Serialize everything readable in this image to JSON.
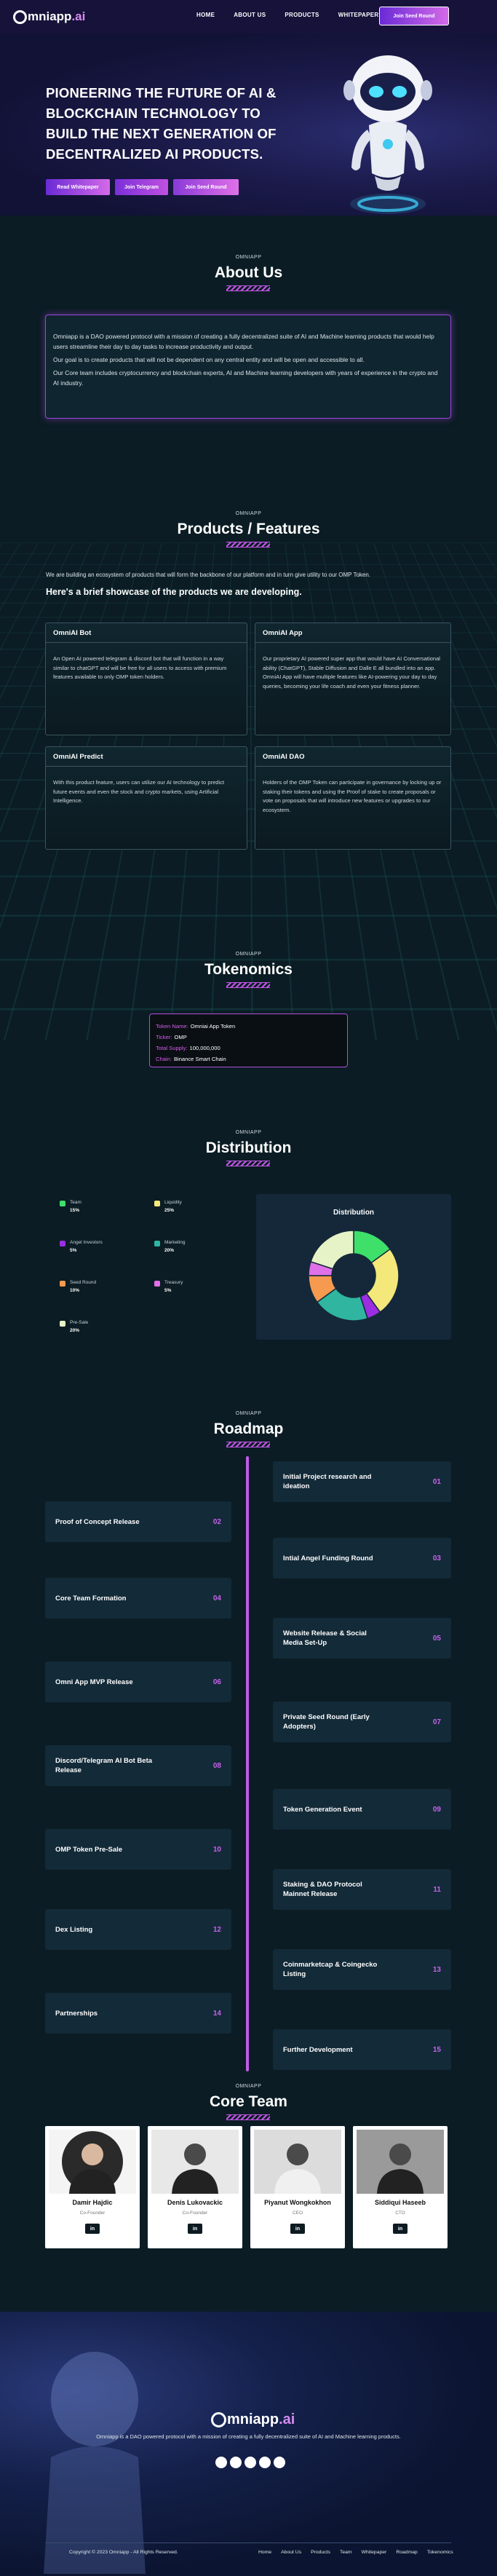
{
  "nav": {
    "logo": "mniapp",
    "logo_suffix": ".ai",
    "links": [
      "HOME",
      "ABOUT US",
      "PRODUCTS",
      "WHITEPAPER"
    ],
    "cta": "Join Seed Round"
  },
  "hero": {
    "title": "PIONEERING THE FUTURE OF AI & BLOCKCHAIN TECHNOLOGY TO BUILD THE NEXT GENERATION OF DECENTRALIZED AI PRODUCTS.",
    "buttons": [
      "Read Whitepaper",
      "Join Telegram",
      "Join Seed Round"
    ]
  },
  "about": {
    "eyebrow": "OMNIAPP",
    "title": "About Us",
    "paragraphs": [
      "Omniapp is a DAO powered protocol with a mission of creating a fully decentralized suite of AI and Machine learning products that would help users streamline their day to day tasks to increase productivity and output.",
      "Our goal is to create products that will not be dependent on any central entity and will be open and accessible to all.",
      "Our Core team includes cryptocurrency and blockchain experts, AI and Machine learning developers with years of experience in the crypto and AI industry."
    ]
  },
  "products": {
    "eyebrow": "OMNIAPP",
    "title": "Products / Features",
    "intro": "We are building an ecosystem of products that will form the backbone of our platform and in turn give utility to our OMP Token.",
    "subtitle": "Here's a brief showcase of the products we are developing.",
    "cards": [
      {
        "title": "OmniAI Bot",
        "text": "An Open AI powered telegram & discord bot that will function in a way similar to chatGPT and will be free for all users to access with premium features available to only OMP token holders."
      },
      {
        "title": "OmniAI App",
        "text": "Our proprietary AI powered super app that would have AI Conversational ability (ChatGPT), Stable Diffusion and Dalle E all bundled into an app. OmniAI App will have multiple features like AI-powering your day to day queries, becoming your life coach and even your fitness planner."
      },
      {
        "title": "OmniAI Predict",
        "text": "With this product feature, users can utilize our AI technology to predict future events and even the stock and crypto markets, using Artificial Intelligence."
      },
      {
        "title": "OmniAI DAO",
        "text": "Holders of the OMP Token can participate in governance by locking up or staking their tokens and using the Proof of stake to create proposals or vote on proposals that will introduce new features or upgrades to our ecosystem."
      }
    ]
  },
  "tokenomics": {
    "eyebrow": "OMNIAPP",
    "title": "Tokenomics",
    "items": [
      {
        "label": "Token Name:",
        "value": "Omniai App Token"
      },
      {
        "label": "Ticker:",
        "value": "OMP"
      },
      {
        "label": "Total Supply:",
        "value": "100,000,000"
      },
      {
        "label": "Chain:",
        "value": "Binance Smart Chain"
      }
    ]
  },
  "distribution": {
    "eyebrow": "OMNIAPP",
    "title": "Distribution"
  },
  "chart_data": {
    "type": "pie",
    "donut": true,
    "title": "Distribution",
    "categories": [
      "Team",
      "Liquidity",
      "Angel Investors",
      "Marketing",
      "Seed Round",
      "Treasury",
      "Pre-Sale"
    ],
    "values": [
      15,
      25,
      5,
      20,
      10,
      5,
      20
    ],
    "value_labels": [
      "15%",
      "25%",
      "5%",
      "20%",
      "10%",
      "5%",
      "20%"
    ],
    "colors": [
      "#3ee06a",
      "#f4e87a",
      "#9a2ee0",
      "#2fb5a0",
      "#f59a4e",
      "#e070e8",
      "#e6f3c6"
    ]
  },
  "roadmap": {
    "eyebrow": "OMNIAPP",
    "title": "Roadmap",
    "items": [
      {
        "title": "Initial Project research and ideation",
        "number": "01"
      },
      {
        "title": "Proof of Concept Release",
        "number": "02"
      },
      {
        "title": "Intial Angel Funding Round",
        "number": "03"
      },
      {
        "title": "Core Team Formation",
        "number": "04"
      },
      {
        "title": "Website Release & Social Media Set-Up",
        "number": "05"
      },
      {
        "title": "Omni App MVP Release",
        "number": "06"
      },
      {
        "title": "Private Seed Round (Early Adopters)",
        "number": "07"
      },
      {
        "title": "Discord/Telegram AI Bot Beta Release",
        "number": "08"
      },
      {
        "title": "Token Generation Event",
        "number": "09"
      },
      {
        "title": "OMP Token Pre-Sale",
        "number": "10"
      },
      {
        "title": "Staking & DAO Protocol Mainnet Release",
        "number": "11"
      },
      {
        "title": "Dex Listing",
        "number": "12"
      },
      {
        "title": "Coinmarketcap & Coingecko Listing",
        "number": "13"
      },
      {
        "title": "Partnerships",
        "number": "14"
      },
      {
        "title": "Further Development",
        "number": "15"
      }
    ]
  },
  "team": {
    "eyebrow": "OMNIAPP",
    "title": "Core Team",
    "members": [
      {
        "name": "Damir Hajdic",
        "role": "Co-Founder",
        "link": "in"
      },
      {
        "name": "Denis Lukovackic",
        "role": "Co-Founder",
        "link": "in"
      },
      {
        "name": "Piyanut Wongkokhon",
        "role": "CEO",
        "link": "in"
      },
      {
        "name": "Siddiqui Haseeb",
        "role": "CTO",
        "link": "in"
      }
    ]
  },
  "footer": {
    "logo": "mniapp",
    "logo_suffix": ".ai",
    "tagline": "Omniapp is a DAO powered protocol with a mission of creating a fully decentralized suite of AI and Machine learning products.",
    "copyright": "Copyright © 2023 Omniapp - All Rights Reserved.",
    "links": [
      "Home",
      "About Us",
      "Products",
      "Team",
      "Whitepaper",
      "Roadmap",
      "Tokenomics"
    ]
  }
}
